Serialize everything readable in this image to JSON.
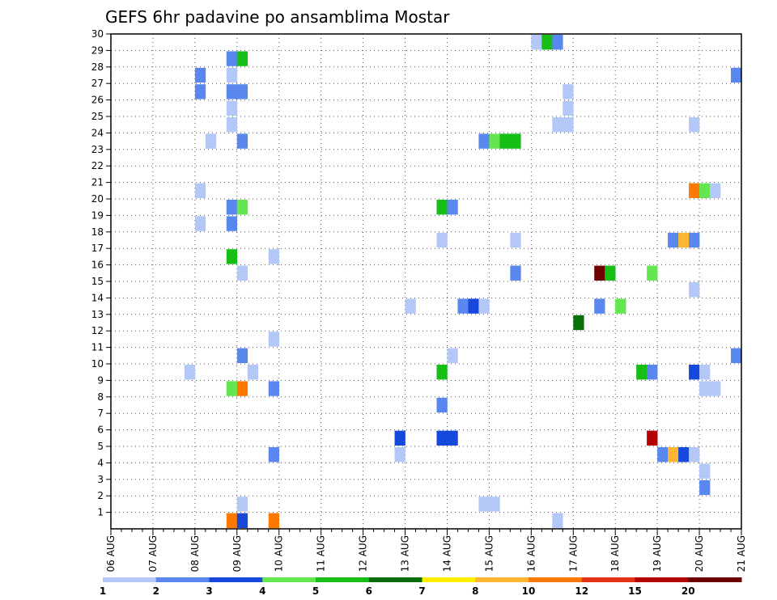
{
  "chart_data": {
    "type": "heatmap",
    "title": "GEFS 6hr padavine po ansamblima Mostar",
    "x_ticks": [
      "06 AUG",
      "07 AUG",
      "08 AUG",
      "09 AUG",
      "10 AUG",
      "11 AUG",
      "12 AUG",
      "13 AUG",
      "14 AUG",
      "15 AUG",
      "16 AUG",
      "17 AUG",
      "18 AUG",
      "19 AUG",
      "20 AUG",
      "21 AUG"
    ],
    "y_ticks": [
      "1",
      "2",
      "3",
      "4",
      "5",
      "6",
      "7",
      "8",
      "9",
      "10",
      "11",
      "12",
      "13",
      "14",
      "15",
      "16",
      "17",
      "18",
      "19",
      "20",
      "21",
      "22",
      "23",
      "24",
      "25",
      "26",
      "27",
      "28",
      "29",
      "30"
    ],
    "x_unit": "6-hour step from 06 AUG",
    "y_unit": "ensemble member",
    "grid": true,
    "colorbar": {
      "labels": [
        "1",
        "2",
        "3",
        "4",
        "5",
        "6",
        "7",
        "8",
        "10",
        "12",
        "15",
        "20"
      ],
      "colors": [
        "#b4c8f8",
        "#5a87ee",
        "#1648dc",
        "#64e650",
        "#16be16",
        "#0a6e0a",
        "#ffee00",
        "#ffb432",
        "#ff7800",
        "#e63214",
        "#b40000",
        "#6e0000"
      ]
    },
    "cells": [
      {
        "member": 0,
        "step": 11,
        "value": "10-12"
      },
      {
        "member": 0,
        "step": 12,
        "value": "3-4"
      },
      {
        "member": 0,
        "step": 15,
        "value": "10-12"
      },
      {
        "member": 0,
        "step": 42,
        "value": "1-2"
      },
      {
        "member": 1,
        "step": 12,
        "value": "1-2"
      },
      {
        "member": 1,
        "step": 35,
        "value": "1-2"
      },
      {
        "member": 1,
        "step": 36,
        "value": "1-2"
      },
      {
        "member": 2,
        "step": 56,
        "value": "2-3"
      },
      {
        "member": 3,
        "step": 56,
        "value": "1-2"
      },
      {
        "member": 4,
        "step": 15,
        "value": "2-3"
      },
      {
        "member": 4,
        "step": 27,
        "value": "1-2"
      },
      {
        "member": 4,
        "step": 52,
        "value": "2-3"
      },
      {
        "member": 4,
        "step": 53,
        "value": "8-10"
      },
      {
        "member": 4,
        "step": 54,
        "value": "3-4"
      },
      {
        "member": 4,
        "step": 55,
        "value": "1-2"
      },
      {
        "member": 5,
        "step": 27,
        "value": "3-4"
      },
      {
        "member": 5,
        "step": 31,
        "value": "3-4"
      },
      {
        "member": 5,
        "step": 32,
        "value": "3-4"
      },
      {
        "member": 5,
        "step": 51,
        "value": "15-20"
      },
      {
        "member": 7,
        "step": 31,
        "value": "2-3"
      },
      {
        "member": 8,
        "step": 11,
        "value": "4-5"
      },
      {
        "member": 8,
        "step": 12,
        "value": "10-12"
      },
      {
        "member": 8,
        "step": 15,
        "value": "2-3"
      },
      {
        "member": 8,
        "step": 56,
        "value": "1-2"
      },
      {
        "member": 8,
        "step": 57,
        "value": "1-2"
      },
      {
        "member": 9,
        "step": 7,
        "value": "1-2"
      },
      {
        "member": 9,
        "step": 13,
        "value": "1-2"
      },
      {
        "member": 9,
        "step": 31,
        "value": "5-6"
      },
      {
        "member": 9,
        "step": 50,
        "value": "5-6"
      },
      {
        "member": 9,
        "step": 51,
        "value": "2-3"
      },
      {
        "member": 9,
        "step": 55,
        "value": "3-4"
      },
      {
        "member": 9,
        "step": 56,
        "value": "1-2"
      },
      {
        "member": 10,
        "step": 12,
        "value": "2-3"
      },
      {
        "member": 10,
        "step": 32,
        "value": "1-2"
      },
      {
        "member": 10,
        "step": 59,
        "value": "2-3"
      },
      {
        "member": 11,
        "step": 15,
        "value": "1-2"
      },
      {
        "member": 12,
        "step": 44,
        "value": "6-7"
      },
      {
        "member": 13,
        "step": 28,
        "value": "1-2"
      },
      {
        "member": 13,
        "step": 33,
        "value": "2-3"
      },
      {
        "member": 13,
        "step": 34,
        "value": "3-4"
      },
      {
        "member": 13,
        "step": 35,
        "value": "1-2"
      },
      {
        "member": 13,
        "step": 46,
        "value": "2-3"
      },
      {
        "member": 13,
        "step": 48,
        "value": "4-5"
      },
      {
        "member": 14,
        "step": 55,
        "value": "1-2"
      },
      {
        "member": 15,
        "step": 12,
        "value": "1-2"
      },
      {
        "member": 15,
        "step": 38,
        "value": "2-3"
      },
      {
        "member": 15,
        "step": 46,
        "value": "20+"
      },
      {
        "member": 15,
        "step": 47,
        "value": "5-6"
      },
      {
        "member": 15,
        "step": 51,
        "value": "4-5"
      },
      {
        "member": 16,
        "step": 11,
        "value": "5-6"
      },
      {
        "member": 16,
        "step": 15,
        "value": "1-2"
      },
      {
        "member": 17,
        "step": 31,
        "value": "1-2"
      },
      {
        "member": 17,
        "step": 38,
        "value": "1-2"
      },
      {
        "member": 17,
        "step": 53,
        "value": "2-3"
      },
      {
        "member": 17,
        "step": 54,
        "value": "8-10"
      },
      {
        "member": 17,
        "step": 55,
        "value": "2-3"
      },
      {
        "member": 18,
        "step": 8,
        "value": "1-2"
      },
      {
        "member": 18,
        "step": 11,
        "value": "2-3"
      },
      {
        "member": 19,
        "step": 11,
        "value": "2-3"
      },
      {
        "member": 19,
        "step": 12,
        "value": "4-5"
      },
      {
        "member": 19,
        "step": 31,
        "value": "5-6"
      },
      {
        "member": 19,
        "step": 32,
        "value": "2-3"
      },
      {
        "member": 20,
        "step": 8,
        "value": "1-2"
      },
      {
        "member": 20,
        "step": 55,
        "value": "10-12"
      },
      {
        "member": 20,
        "step": 56,
        "value": "4-5"
      },
      {
        "member": 20,
        "step": 57,
        "value": "1-2"
      },
      {
        "member": 23,
        "step": 9,
        "value": "1-2"
      },
      {
        "member": 23,
        "step": 12,
        "value": "2-3"
      },
      {
        "member": 23,
        "step": 35,
        "value": "2-3"
      },
      {
        "member": 23,
        "step": 36,
        "value": "4-5"
      },
      {
        "member": 23,
        "step": 37,
        "value": "5-6"
      },
      {
        "member": 23,
        "step": 38,
        "value": "5-6"
      },
      {
        "member": 24,
        "step": 11,
        "value": "1-2"
      },
      {
        "member": 24,
        "step": 42,
        "value": "1-2"
      },
      {
        "member": 24,
        "step": 43,
        "value": "1-2"
      },
      {
        "member": 24,
        "step": 55,
        "value": "1-2"
      },
      {
        "member": 25,
        "step": 11,
        "value": "1-2"
      },
      {
        "member": 25,
        "step": 43,
        "value": "1-2"
      },
      {
        "member": 26,
        "step": 8,
        "value": "2-3"
      },
      {
        "member": 26,
        "step": 11,
        "value": "2-3"
      },
      {
        "member": 26,
        "step": 12,
        "value": "2-3"
      },
      {
        "member": 26,
        "step": 43,
        "value": "1-2"
      },
      {
        "member": 27,
        "step": 8,
        "value": "2-3"
      },
      {
        "member": 27,
        "step": 11,
        "value": "1-2"
      },
      {
        "member": 27,
        "step": 59,
        "value": "2-3"
      },
      {
        "member": 28,
        "step": 11,
        "value": "2-3"
      },
      {
        "member": 28,
        "step": 12,
        "value": "5-6"
      },
      {
        "member": 29,
        "step": 40,
        "value": "1-2"
      },
      {
        "member": 29,
        "step": 41,
        "value": "5-6"
      },
      {
        "member": 29,
        "step": 42,
        "value": "2-3"
      }
    ]
  }
}
